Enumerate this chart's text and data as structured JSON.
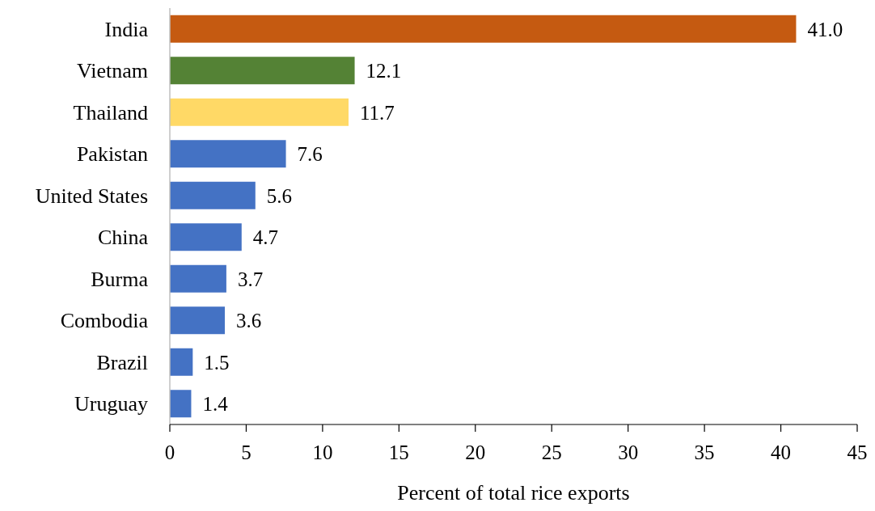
{
  "chart_data": {
    "type": "bar",
    "orientation": "horizontal",
    "xlabel": "Percent of total rice exports",
    "categories": [
      "India",
      "Vietnam",
      "Thailand",
      "Pakistan",
      "United States",
      "China",
      "Burma",
      "Combodia",
      "Brazil",
      "Uruguay"
    ],
    "values": [
      41.0,
      12.1,
      11.7,
      7.6,
      5.6,
      4.7,
      3.7,
      3.6,
      1.5,
      1.4
    ],
    "colors": [
      "#c55a11",
      "#548235",
      "#ffd966",
      "#4472c4",
      "#4472c4",
      "#4472c4",
      "#4472c4",
      "#4472c4",
      "#4472c4",
      "#4472c4"
    ],
    "value_labels": [
      "41.0",
      "12.1",
      "11.7",
      "7.6",
      "5.6",
      "4.7",
      "3.7",
      "3.6",
      "1.5",
      "1.4"
    ],
    "xlim": [
      0,
      45
    ],
    "xticks": [
      0,
      5,
      10,
      15,
      20,
      25,
      30,
      35,
      40,
      45
    ],
    "grid": false
  }
}
